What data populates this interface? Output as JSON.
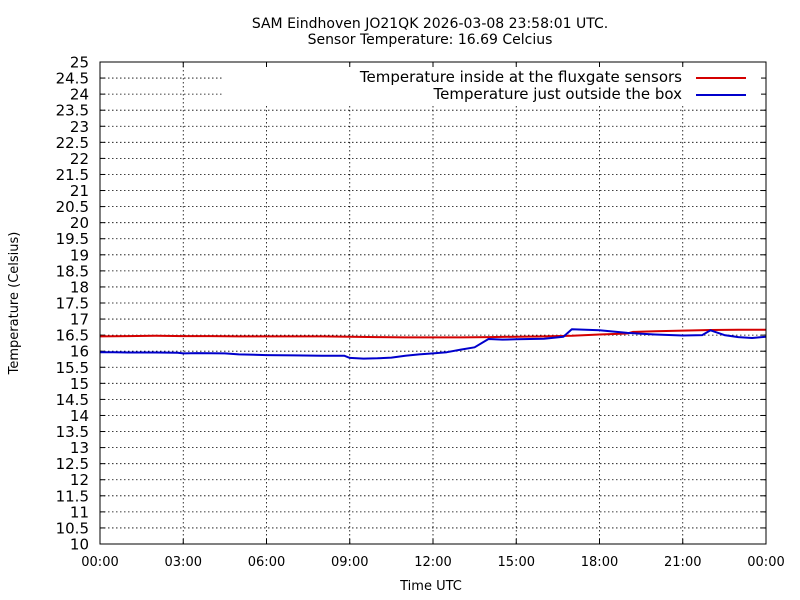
{
  "chart_data": {
    "type": "line",
    "title": "SAM Eindhoven JO21QK 2026-03-08 23:58:01 UTC.",
    "subtitle": "Sensor Temperature: 16.69 Celcius",
    "xlabel": "Time UTC",
    "ylabel": "Temperature (Celsius)",
    "ylim": [
      10,
      25
    ],
    "xlim": [
      0,
      24
    ],
    "x_ticks": [
      "00:00",
      "03:00",
      "06:00",
      "09:00",
      "12:00",
      "15:00",
      "18:00",
      "21:00",
      "00:00"
    ],
    "y_ticks": [
      "10",
      "10.5",
      "11",
      "11.5",
      "12",
      "12.5",
      "13",
      "13.5",
      "14",
      "14.5",
      "15",
      "15.5",
      "16",
      "16.5",
      "17",
      "17.5",
      "18",
      "18.5",
      "19",
      "19.5",
      "20",
      "20.5",
      "21",
      "21.5",
      "22",
      "22.5",
      "23",
      "23.5",
      "24",
      "24.5",
      "25"
    ],
    "grid": true,
    "legend_position": "top-right",
    "series": [
      {
        "name": "Temperature inside at the fluxgate sensors",
        "color": "#d40000",
        "x": [
          0,
          1,
          2,
          3,
          4,
          5,
          6,
          7,
          8,
          9,
          10,
          11,
          12,
          13,
          14,
          15,
          16,
          17,
          18,
          19,
          19.2,
          20,
          21,
          22,
          23,
          24
        ],
        "y": [
          16.46,
          16.47,
          16.48,
          16.47,
          16.47,
          16.46,
          16.46,
          16.46,
          16.46,
          16.45,
          16.44,
          16.43,
          16.43,
          16.43,
          16.44,
          16.45,
          16.46,
          16.48,
          16.52,
          16.55,
          16.6,
          16.62,
          16.64,
          16.66,
          16.67,
          16.67
        ]
      },
      {
        "name": "Temperature just outside the box",
        "color": "#0000cc",
        "x": [
          0,
          0.5,
          1,
          2,
          2.8,
          3,
          3.5,
          4.5,
          5,
          6,
          7,
          8,
          8.8,
          9,
          9.5,
          10,
          10.5,
          11,
          11.5,
          12,
          12.5,
          13,
          13.5,
          14,
          14.5,
          15,
          16,
          16.7,
          17,
          18,
          19,
          20,
          21,
          21.7,
          22,
          22.5,
          23,
          23.5,
          24
        ],
        "y": [
          15.97,
          15.97,
          15.96,
          15.96,
          15.95,
          15.93,
          15.94,
          15.93,
          15.9,
          15.88,
          15.87,
          15.86,
          15.86,
          15.79,
          15.77,
          15.78,
          15.8,
          15.86,
          15.9,
          15.93,
          15.97,
          16.05,
          16.12,
          16.38,
          16.36,
          16.37,
          16.39,
          16.45,
          16.68,
          16.65,
          16.57,
          16.52,
          16.49,
          16.5,
          16.65,
          16.5,
          16.44,
          16.41,
          16.45
        ]
      }
    ]
  }
}
